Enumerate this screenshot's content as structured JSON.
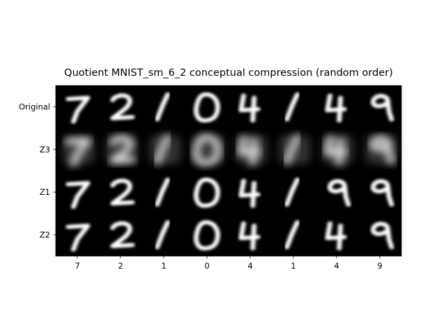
{
  "chart_data": {
    "type": "image_grid",
    "title": "Quotient MNIST_sm_6_2 conceptual compression (random order)",
    "row_labels": [
      "Original",
      "Z3",
      "Z1",
      "Z2"
    ],
    "column_labels": [
      "7",
      "2",
      "1",
      "0",
      "4",
      "1",
      "4",
      "9"
    ],
    "cells": [
      {
        "row": "Original",
        "digits": [
          "7",
          "2",
          "1",
          "0",
          "4",
          "1",
          "4",
          "9"
        ],
        "quality": "sharp"
      },
      {
        "row": "Z3",
        "digits": [
          "7",
          "2",
          "1",
          "0",
          "4",
          "1",
          "4",
          "9"
        ],
        "quality": "blurry"
      },
      {
        "row": "Z1",
        "digits": [
          "7",
          "2",
          "1",
          "0",
          "4",
          "1",
          "9",
          "9"
        ],
        "quality": "sharp"
      },
      {
        "row": "Z2",
        "digits": [
          "7",
          "2",
          "1",
          "0",
          "4",
          "1",
          "4",
          "9"
        ],
        "quality": "sharp"
      }
    ],
    "background": "#000000",
    "foreground": "#ffffff"
  }
}
